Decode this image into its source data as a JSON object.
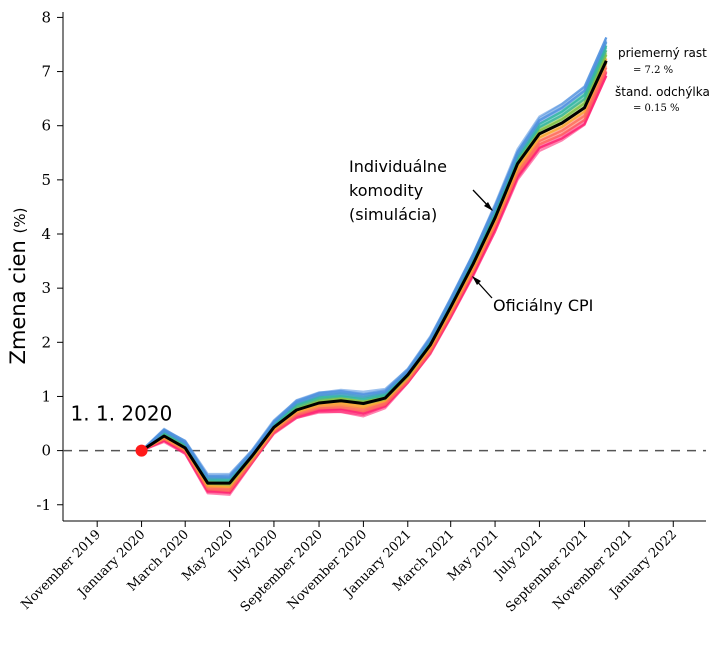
{
  "chart_data": {
    "type": "line",
    "title": "",
    "xlabel": "",
    "ylabel": "Zmena cien",
    "ylabel_unit": "(%)",
    "ylim": [
      -1.3,
      8.1
    ],
    "yticks": [
      -1,
      0,
      1,
      2,
      3,
      4,
      5,
      6,
      7,
      8
    ],
    "xlim": [
      "2019-09-15",
      "2022-02-15"
    ],
    "x_ticks": [
      {
        "date": "2019-11-01",
        "label": "November 2019"
      },
      {
        "date": "2020-01-01",
        "label": "January 2020"
      },
      {
        "date": "2020-03-01",
        "label": "March 2020"
      },
      {
        "date": "2020-05-01",
        "label": "May 2020"
      },
      {
        "date": "2020-07-01",
        "label": "July 2020"
      },
      {
        "date": "2020-09-01",
        "label": "September 2020"
      },
      {
        "date": "2020-11-01",
        "label": "November 2020"
      },
      {
        "date": "2021-01-01",
        "label": "January 2021"
      },
      {
        "date": "2021-03-01",
        "label": "March 2021"
      },
      {
        "date": "2021-05-01",
        "label": "May 2021"
      },
      {
        "date": "2021-07-01",
        "label": "July 2021"
      },
      {
        "date": "2021-09-01",
        "label": "September 2021"
      },
      {
        "date": "2021-11-01",
        "label": "November 2021"
      },
      {
        "date": "2022-01-01",
        "label": "January 2022"
      }
    ],
    "series": [
      {
        "name": "Oficiálny CPI",
        "color": "#000000",
        "points": [
          {
            "x": "2020-01-01",
            "y": 0.0
          },
          {
            "x": "2020-02-01",
            "y": 0.27
          },
          {
            "x": "2020-03-01",
            "y": 0.05
          },
          {
            "x": "2020-04-01",
            "y": -0.6
          },
          {
            "x": "2020-05-01",
            "y": -0.6
          },
          {
            "x": "2020-06-01",
            "y": -0.1
          },
          {
            "x": "2020-07-01",
            "y": 0.43
          },
          {
            "x": "2020-08-01",
            "y": 0.75
          },
          {
            "x": "2020-09-01",
            "y": 0.88
          },
          {
            "x": "2020-10-01",
            "y": 0.92
          },
          {
            "x": "2020-11-01",
            "y": 0.87
          },
          {
            "x": "2020-12-01",
            "y": 0.97
          },
          {
            "x": "2021-01-01",
            "y": 1.4
          },
          {
            "x": "2021-02-01",
            "y": 1.95
          },
          {
            "x": "2021-03-01",
            "y": 2.65
          },
          {
            "x": "2021-04-01",
            "y": 3.45
          },
          {
            "x": "2021-05-01",
            "y": 4.3
          },
          {
            "x": "2021-06-01",
            "y": 5.3
          },
          {
            "x": "2021-07-01",
            "y": 5.85
          },
          {
            "x": "2021-08-01",
            "y": 6.05
          },
          {
            "x": "2021-09-01",
            "y": 6.33
          },
          {
            "x": "2021-10-01",
            "y": 7.2
          }
        ]
      },
      {
        "name": "Individuálne komodity (simulácia)",
        "type": "band",
        "colors": [
          "#ff1f6f",
          "#ff6b5a",
          "#f7a532",
          "#7fbf3f",
          "#2fb5a0",
          "#4f8fdf"
        ],
        "spread_lo": [
          0.0,
          -0.1,
          -0.1,
          -0.17,
          -0.2,
          -0.13,
          -0.12,
          -0.15,
          -0.17,
          -0.2,
          -0.22,
          -0.17,
          -0.15,
          -0.17,
          -0.2,
          -0.22,
          -0.25,
          -0.28,
          -0.3,
          -0.32,
          -0.33,
          -0.3
        ],
        "spread_hi": [
          0.0,
          0.13,
          0.13,
          0.15,
          0.15,
          0.1,
          0.12,
          0.18,
          0.2,
          0.2,
          0.2,
          0.15,
          0.1,
          0.15,
          0.17,
          0.2,
          0.25,
          0.25,
          0.3,
          0.35,
          0.4,
          0.45
        ]
      }
    ],
    "reference_line": {
      "y": 0,
      "style": "dashed"
    },
    "start_point": {
      "x": "2020-01-01",
      "y": 0,
      "label": "1. 1. 2020",
      "color": "#ff1a1a"
    },
    "annotations": [
      {
        "lines": [
          "Individuálne",
          "komodity",
          "(simulácia)"
        ],
        "target": "Individuálne komodity (simulácia)"
      },
      {
        "text": "Oficiálny CPI",
        "target": "Oficiálny CPI"
      }
    ],
    "stats": {
      "growth_label": "priemerný rast",
      "growth_value": "= 7.2 %",
      "std_label": "štand. odchýlka",
      "std_value": "= 0.15 %"
    },
    "grid": false,
    "legend": "none"
  }
}
